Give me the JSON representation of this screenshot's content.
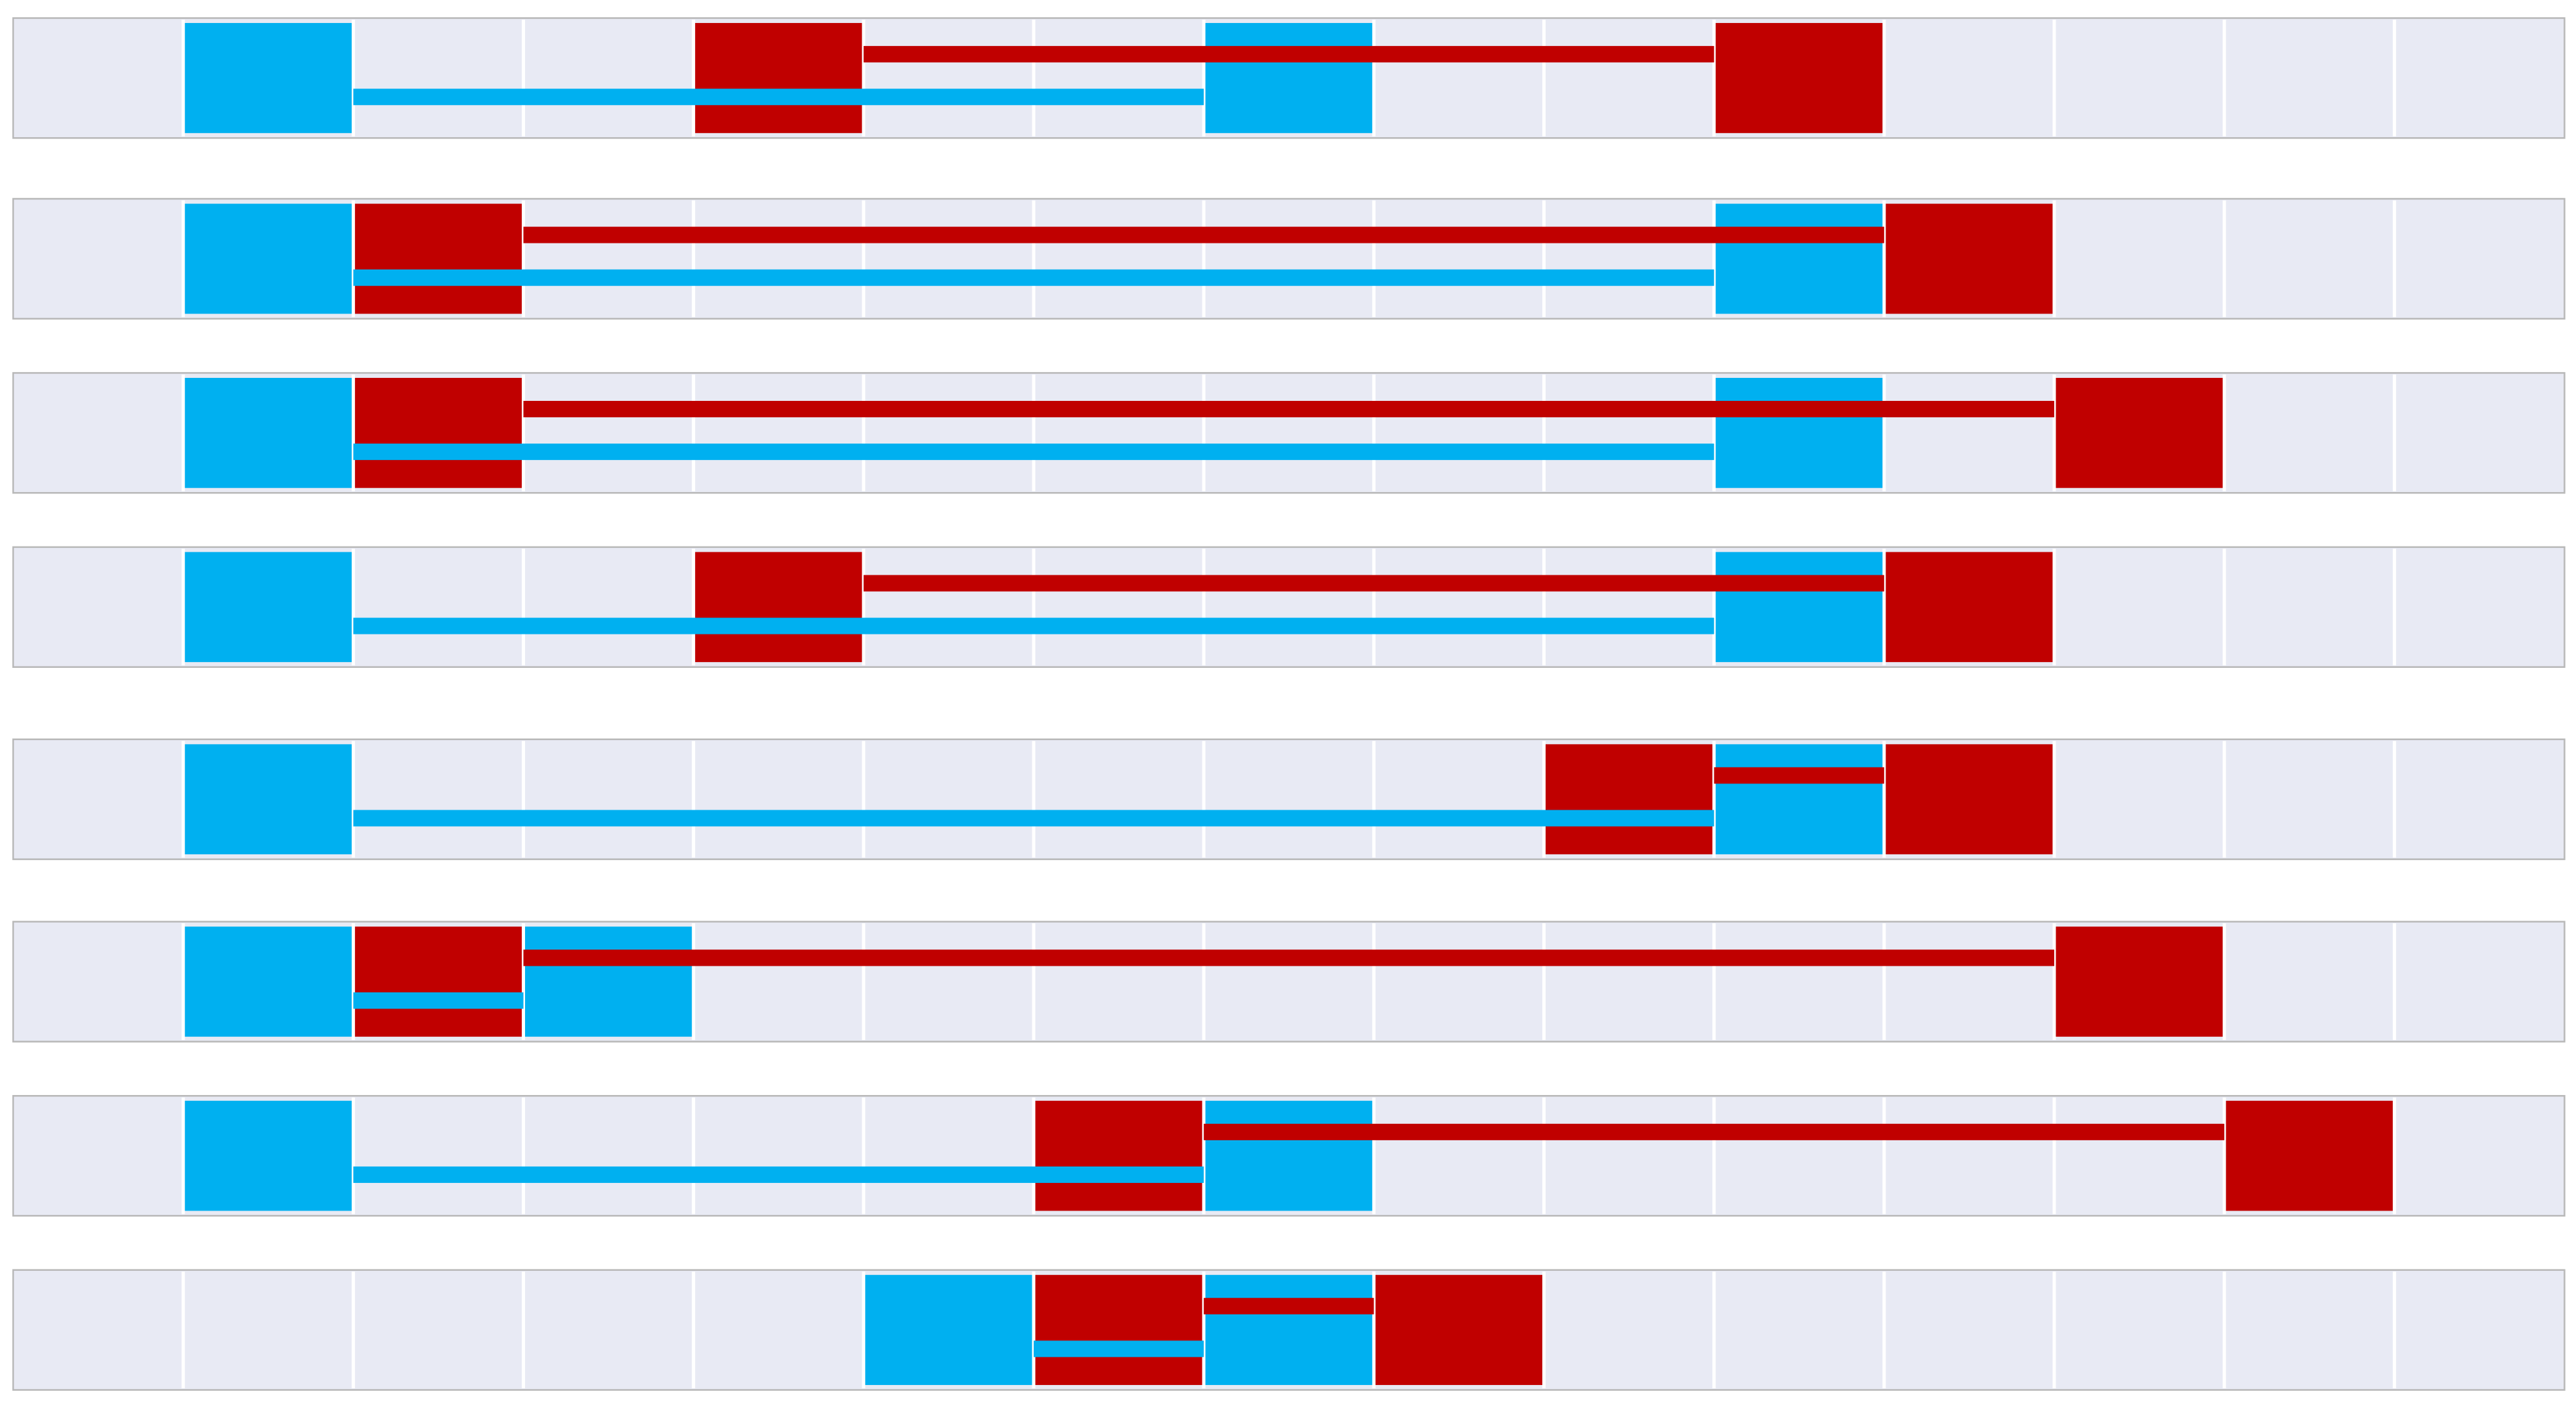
{
  "columns": 15,
  "rows": [
    {
      "blue": [
        1,
        7
      ],
      "red": [
        4,
        10
      ]
    },
    {
      "blue": [
        1,
        10
      ],
      "red": [
        2,
        11
      ]
    },
    {
      "blue": [
        1,
        10
      ],
      "red": [
        2,
        12
      ]
    },
    {
      "blue": [
        1,
        10
      ],
      "red": [
        4,
        11
      ]
    },
    {
      "blue": [
        1,
        10
      ],
      "red": [
        9,
        11
      ]
    },
    {
      "blue": [
        1,
        3
      ],
      "red": [
        2,
        12
      ]
    },
    {
      "blue": [
        1,
        7
      ],
      "red": [
        6,
        13
      ]
    },
    {
      "blue": [
        5,
        7
      ],
      "red": [
        6,
        8
      ]
    }
  ]
}
